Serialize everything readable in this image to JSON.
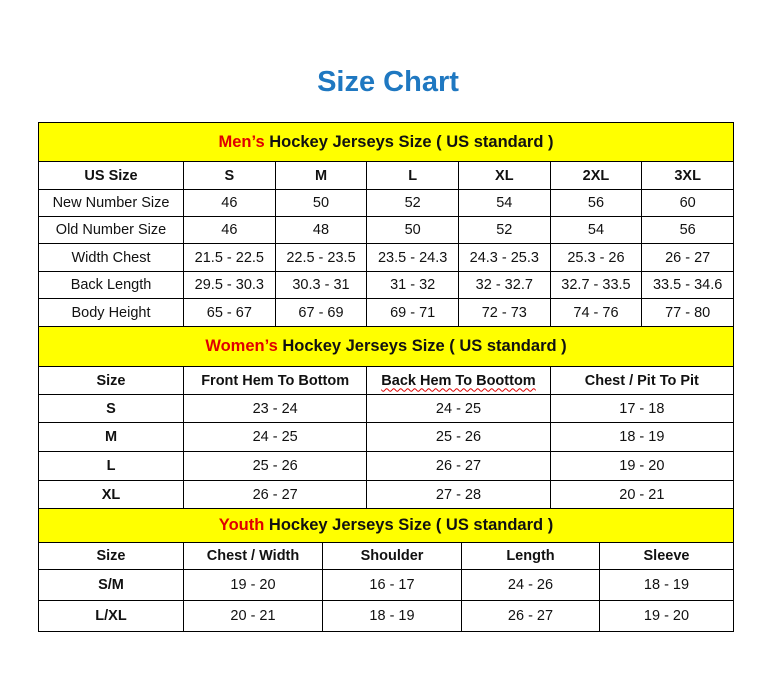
{
  "title": "Size Chart",
  "men": {
    "prefix": "Men’s",
    "heading": " Hockey Jerseys Size ( US standard )",
    "columns": [
      "US Size",
      "S",
      "M",
      "L",
      "XL",
      "2XL",
      "3XL"
    ],
    "rows": [
      [
        "New Number Size",
        "46",
        "50",
        "52",
        "54",
        "56",
        "60"
      ],
      [
        "Old Number Size",
        "46",
        "48",
        "50",
        "52",
        "54",
        "56"
      ],
      [
        "Width Chest",
        "21.5 - 22.5",
        "22.5 - 23.5",
        "23.5 - 24.3",
        "24.3 - 25.3",
        "25.3 - 26",
        "26 - 27"
      ],
      [
        "Back Length",
        "29.5 - 30.3",
        "30.3 - 31",
        "31 - 32",
        "32 - 32.7",
        "32.7 - 33.5",
        "33.5 - 34.6"
      ],
      [
        "Body Height",
        "65 - 67",
        "67 - 69",
        "69 - 71",
        "72 - 73",
        "74 - 76",
        "77 - 80"
      ]
    ]
  },
  "women": {
    "prefix": "Women’s",
    "heading": " Hockey Jerseys Size ( US standard )",
    "columns": [
      "Size",
      "Front Hem To Bottom",
      "Back Hem To Boottom",
      "Chest / Pit To Pit"
    ],
    "rows": [
      [
        "S",
        "23 - 24",
        "24 - 25",
        "17 - 18"
      ],
      [
        "M",
        "24 - 25",
        "25 - 26",
        "18 - 19"
      ],
      [
        "L",
        "25 - 26",
        "26 - 27",
        "19 - 20"
      ],
      [
        "XL",
        "26 - 27",
        "27 - 28",
        "20 - 21"
      ]
    ]
  },
  "youth": {
    "prefix": "Youth",
    "heading": " Hockey Jerseys Size ( US standard )",
    "columns": [
      "Size",
      "Chest / Width",
      "Shoulder",
      "Length",
      "Sleeve"
    ],
    "rows": [
      [
        "S/M",
        "19 - 20",
        "16 - 17",
        "24 - 26",
        "18 - 19"
      ],
      [
        "L/XL",
        "20 - 21",
        "18 - 19",
        "26 - 27",
        "19 - 20"
      ]
    ]
  },
  "colors": {
    "title": "#1f78c1",
    "header_bg": "#ffff00",
    "prefix": "#e00000"
  }
}
